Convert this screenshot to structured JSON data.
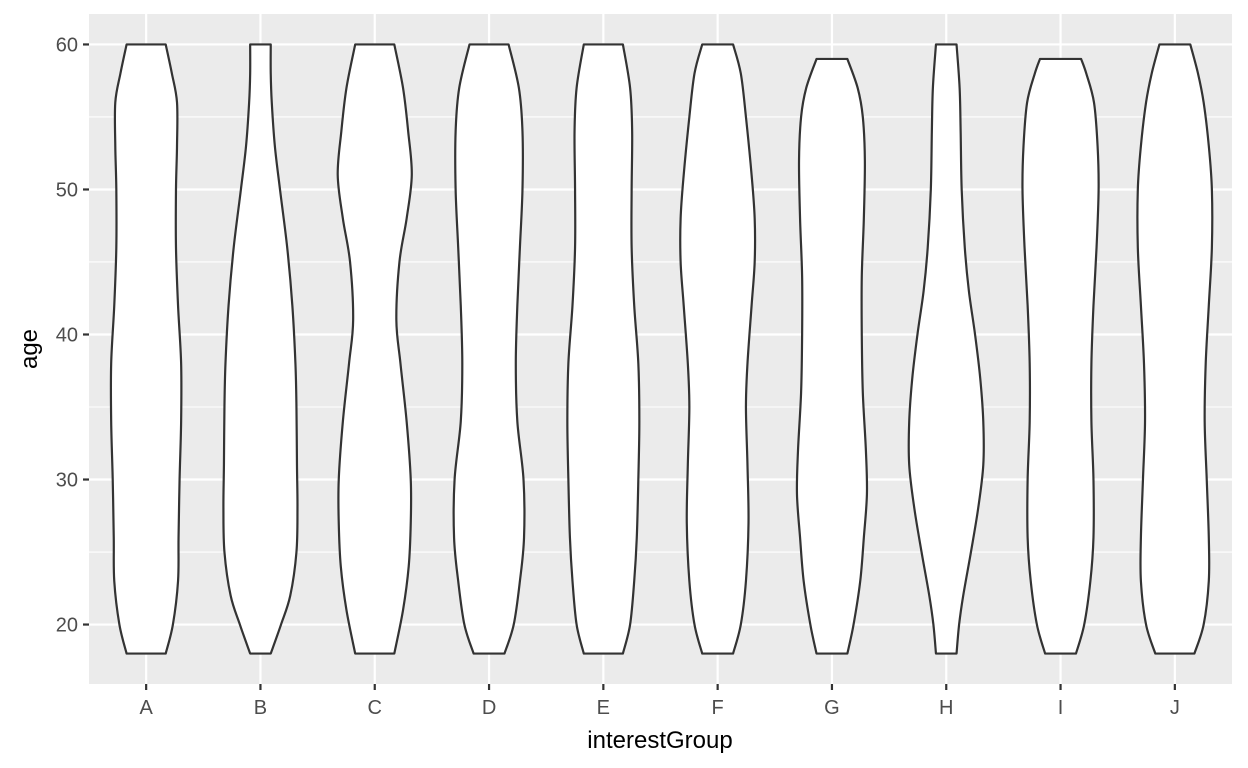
{
  "chart_data": {
    "type": "violin",
    "xlabel": "interestGroup",
    "ylabel": "age",
    "categories": [
      "A",
      "B",
      "C",
      "D",
      "E",
      "F",
      "G",
      "H",
      "I",
      "J"
    ],
    "ylim": [
      15.9,
      62.1
    ],
    "y_ticks": [
      20,
      30,
      40,
      50,
      60
    ],
    "y_minor_ticks": [
      25,
      35,
      45,
      55
    ],
    "grid": true,
    "legend": "none",
    "colors": {
      "panel": "#EBEBEB",
      "grid": "#FFFFFF",
      "violin_fill": "#FFFFFF",
      "violin_outline": "#333333",
      "tick_label": "#4D4D4D",
      "axis_title": "#000000"
    },
    "series": [
      {
        "category": "A",
        "min": 18,
        "max": 60,
        "profile_ages": [
          18,
          20,
          23,
          26,
          30,
          34,
          38,
          42,
          46,
          50,
          53,
          56,
          58,
          60
        ],
        "relative_width": [
          0.38,
          0.52,
          0.62,
          0.63,
          0.65,
          0.68,
          0.68,
          0.62,
          0.58,
          0.58,
          0.6,
          0.6,
          0.5,
          0.38
        ]
      },
      {
        "category": "B",
        "min": 18,
        "max": 60,
        "profile_ages": [
          18,
          20,
          22,
          25,
          28,
          31,
          35,
          38,
          42,
          46,
          50,
          53,
          56,
          58,
          60
        ],
        "relative_width": [
          0.2,
          0.4,
          0.58,
          0.7,
          0.72,
          0.71,
          0.7,
          0.68,
          0.62,
          0.52,
          0.38,
          0.28,
          0.22,
          0.2,
          0.2
        ]
      },
      {
        "category": "C",
        "min": 18,
        "max": 60,
        "profile_ages": [
          18,
          21,
          24,
          27,
          30,
          34,
          38,
          41,
          45,
          48,
          51,
          54,
          57,
          60
        ],
        "relative_width": [
          0.38,
          0.55,
          0.66,
          0.7,
          0.7,
          0.62,
          0.5,
          0.42,
          0.48,
          0.62,
          0.72,
          0.65,
          0.55,
          0.38
        ]
      },
      {
        "category": "D",
        "min": 18,
        "max": 60,
        "profile_ages": [
          18,
          20,
          23,
          26,
          30,
          34,
          38,
          42,
          46,
          50,
          54,
          57,
          60
        ],
        "relative_width": [
          0.3,
          0.48,
          0.6,
          0.68,
          0.67,
          0.55,
          0.52,
          0.55,
          0.6,
          0.65,
          0.65,
          0.58,
          0.38
        ]
      },
      {
        "category": "E",
        "min": 18,
        "max": 60,
        "profile_ages": [
          18,
          20,
          23,
          26,
          30,
          34,
          38,
          42,
          46,
          50,
          54,
          57,
          60
        ],
        "relative_width": [
          0.38,
          0.52,
          0.6,
          0.65,
          0.68,
          0.7,
          0.68,
          0.6,
          0.55,
          0.55,
          0.56,
          0.52,
          0.38
        ]
      },
      {
        "category": "F",
        "min": 18,
        "max": 60,
        "profile_ages": [
          18,
          20,
          23,
          27,
          31,
          35,
          38,
          42,
          45,
          48,
          51,
          55,
          58,
          60
        ],
        "relative_width": [
          0.3,
          0.45,
          0.55,
          0.6,
          0.58,
          0.55,
          0.58,
          0.66,
          0.72,
          0.72,
          0.66,
          0.55,
          0.45,
          0.3
        ]
      },
      {
        "category": "G",
        "min": 18,
        "max": 59,
        "profile_ages": [
          18,
          20,
          23,
          26,
          29,
          32,
          36,
          40,
          44,
          48,
          52,
          55,
          57,
          59
        ],
        "relative_width": [
          0.3,
          0.42,
          0.55,
          0.62,
          0.68,
          0.66,
          0.6,
          0.58,
          0.58,
          0.62,
          0.64,
          0.6,
          0.5,
          0.3
        ]
      },
      {
        "category": "H",
        "min": 18,
        "max": 60,
        "profile_ages": [
          18,
          20,
          22,
          25,
          28,
          31,
          34,
          37,
          40,
          43,
          46,
          50,
          54,
          57,
          60
        ],
        "relative_width": [
          0.2,
          0.25,
          0.33,
          0.48,
          0.62,
          0.72,
          0.72,
          0.66,
          0.56,
          0.44,
          0.36,
          0.3,
          0.28,
          0.26,
          0.2
        ]
      },
      {
        "category": "I",
        "min": 18,
        "max": 59,
        "profile_ages": [
          18,
          20,
          23,
          26,
          30,
          34,
          38,
          42,
          46,
          50,
          53,
          56,
          58,
          59
        ],
        "relative_width": [
          0.3,
          0.46,
          0.58,
          0.64,
          0.64,
          0.6,
          0.6,
          0.64,
          0.7,
          0.74,
          0.72,
          0.65,
          0.5,
          0.4
        ]
      },
      {
        "category": "J",
        "min": 18,
        "max": 60,
        "profile_ages": [
          18,
          20,
          23,
          26,
          30,
          34,
          38,
          42,
          46,
          50,
          53,
          56,
          58,
          60
        ],
        "relative_width": [
          0.38,
          0.56,
          0.66,
          0.66,
          0.62,
          0.58,
          0.6,
          0.66,
          0.72,
          0.72,
          0.66,
          0.56,
          0.45,
          0.3
        ]
      }
    ]
  }
}
